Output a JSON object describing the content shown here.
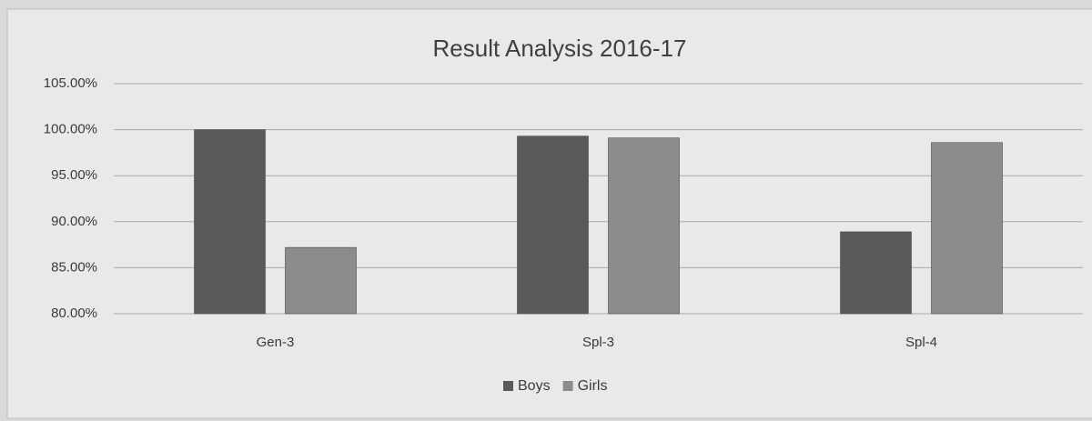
{
  "chart_data": {
    "type": "bar",
    "title": "Result Analysis 2016-17",
    "categories": [
      "Gen-3",
      "Spl-3",
      "Spl-4"
    ],
    "series": [
      {
        "name": "Boys",
        "color": "#5a5a5a",
        "values": [
          100,
          99.3,
          88.9
        ]
      },
      {
        "name": "Girls",
        "color": "#8c8c8c",
        "values": [
          87.2,
          99.1,
          98.6
        ]
      }
    ],
    "ylim": [
      80,
      105
    ],
    "yticks": [
      {
        "value": 80,
        "label": "80.00%"
      },
      {
        "value": 85,
        "label": "85.00%"
      },
      {
        "value": 90,
        "label": "90.00%"
      },
      {
        "value": 95,
        "label": "95.00%"
      },
      {
        "value": 100,
        "label": "100.00%"
      },
      {
        "value": 105,
        "label": "105.00%"
      }
    ],
    "grid": true,
    "legend": "bottom"
  }
}
